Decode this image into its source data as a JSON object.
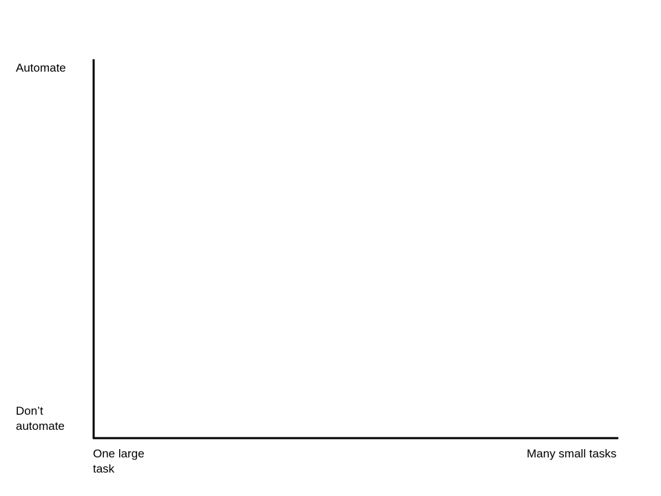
{
  "diagram": {
    "y_axis": {
      "top_label": "Automate",
      "bottom_label": "Don’t\nautomate"
    },
    "x_axis": {
      "left_label": "One large\ntask",
      "right_label": "Many small tasks"
    },
    "axis_color": "#000000"
  }
}
